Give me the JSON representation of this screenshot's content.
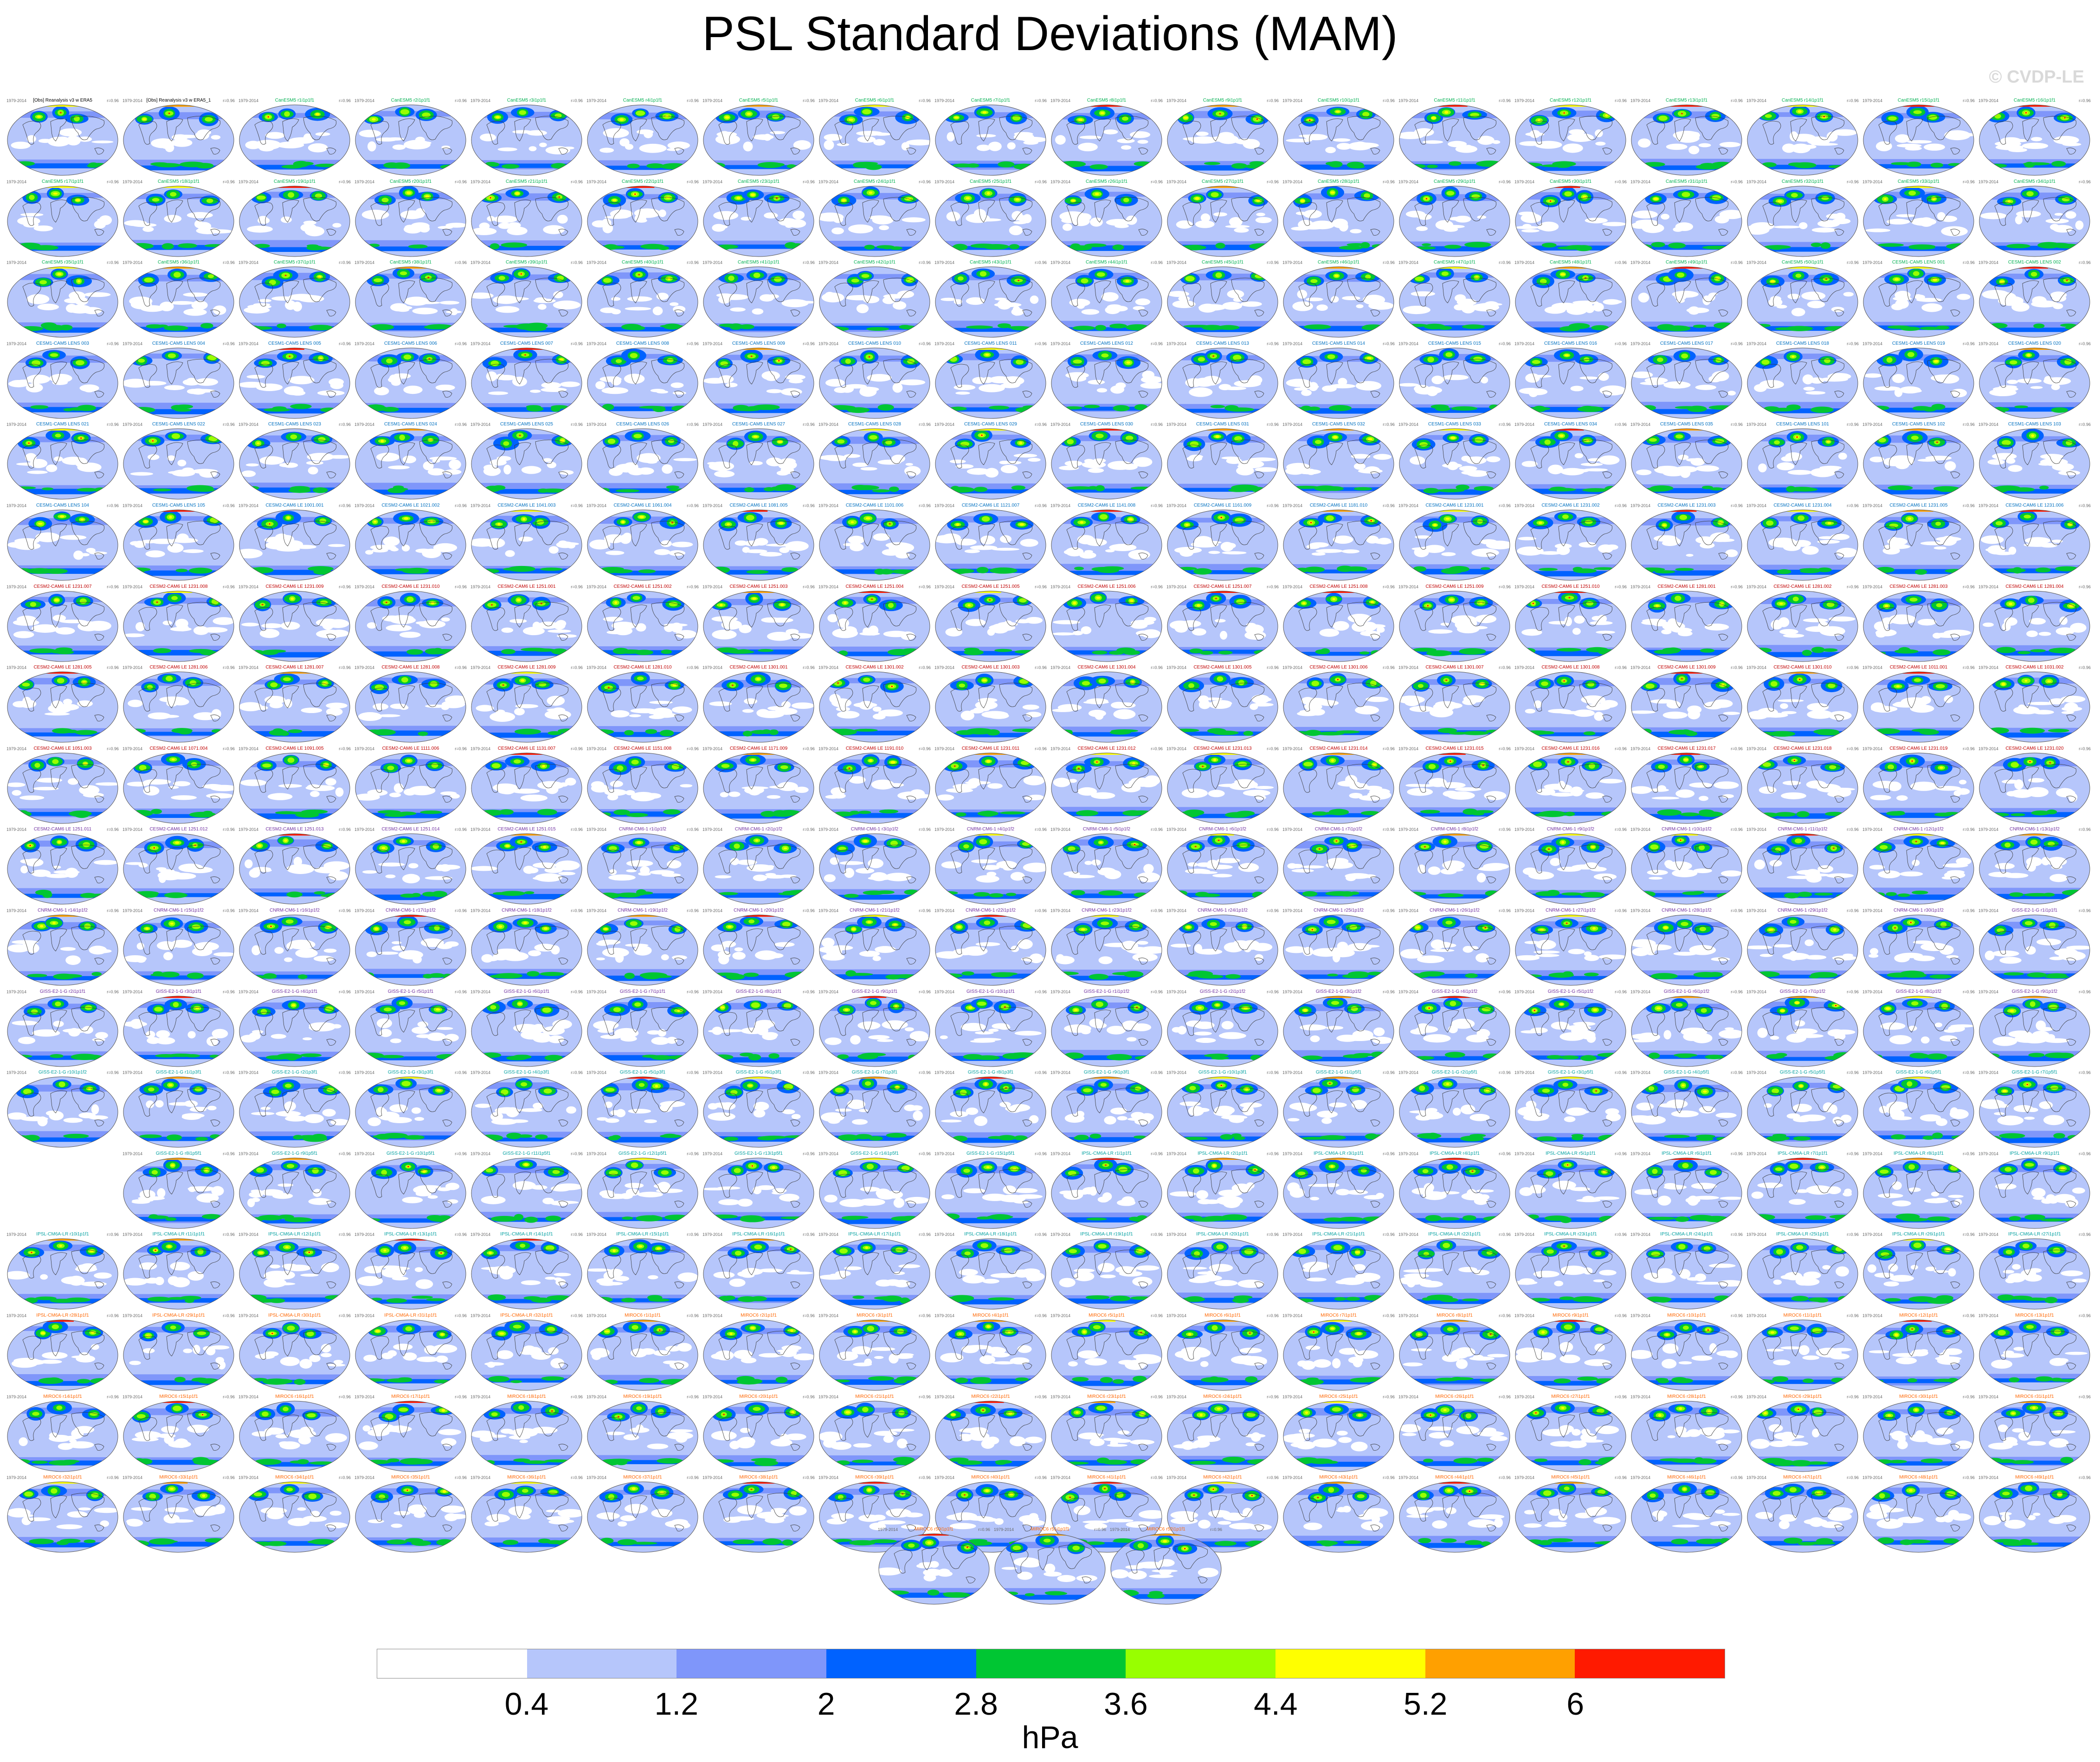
{
  "title": "PSL Standard Deviations (MAM)",
  "watermark": "© CVDP-LE",
  "legend": {
    "units": "hPa",
    "ticks": [
      "0.4",
      "1.2",
      "2",
      "2.8",
      "3.6",
      "4.4",
      "5.2",
      "6"
    ],
    "colors": [
      "#ffffff",
      "#b6c6fb",
      "#7f96fa",
      "#0062ff",
      "#00c633",
      "#98ff00",
      "#ffff00",
      "#ffa000",
      "#ff1a00"
    ]
  },
  "panel": {
    "left_label": "1979-2014",
    "right_label": "r=0.96"
  },
  "panel_rows": [
    {
      "count": 18,
      "labels": [
        "[Obs] Reanalysis v3 w ERA5",
        "[Obs] Reanalysis v3 w ERA5_1",
        "CanESM5 r1i1p1f1",
        "CanESM5 r2i1p1f1",
        "CanESM5 r3i1p1f1",
        "CanESM5 r4i1p1f1",
        "CanESM5 r5i1p1f1",
        "CanESM5 r6i1p1f1",
        "CanESM5 r7i1p1f1",
        "CanESM5 r8i1p1f1",
        "CanESM5 r9i1p1f1",
        "CanESM5 r10i1p1f1",
        "CanESM5 r11i1p1f1",
        "CanESM5 r12i1p1f1",
        "CanESM5 r13i1p1f1",
        "CanESM5 r14i1p1f1",
        "CanESM5 r15i1p1f1",
        "CanESM5 r16i1p1f1"
      ]
    },
    {
      "count": 18,
      "labels": [
        "CanESM5 r17i1p1f1",
        "CanESM5 r18i1p1f1",
        "CanESM5 r19i1p1f1",
        "CanESM5 r20i1p1f1",
        "CanESM5 r21i1p1f1",
        "CanESM5 r22i1p1f1",
        "CanESM5 r23i1p1f1",
        "CanESM5 r24i1p1f1",
        "CanESM5 r25i1p1f1",
        "CanESM5 r26i1p1f1",
        "CanESM5 r27i1p1f1",
        "CanESM5 r28i1p1f1",
        "CanESM5 r29i1p1f1",
        "CanESM5 r30i1p1f1",
        "CanESM5 r31i1p1f1",
        "CanESM5 r32i1p1f1",
        "CanESM5 r33i1p1f1",
        "CanESM5 r34i1p1f1"
      ]
    },
    {
      "count": 18,
      "labels": [
        "CanESM5 r35i1p1f1",
        "CanESM5 r36i1p1f1",
        "CanESM5 r37i1p1f1",
        "CanESM5 r38i1p1f1",
        "CanESM5 r39i1p1f1",
        "CanESM5 r40i1p1f1",
        "CanESM5 r41i1p1f1",
        "CanESM5 r42i1p1f1",
        "CanESM5 r43i1p1f1",
        "CanESM5 r44i1p1f1",
        "CanESM5 r45i1p1f1",
        "CanESM5 r46i1p1f1",
        "CanESM5 r47i1p1f1",
        "CanESM5 r48i1p1f1",
        "CanESM5 r49i1p1f1",
        "CanESM5 r50i1p1f1",
        "CESM1-CAM5 LENS 001",
        "CESM1-CAM5 LENS 002"
      ]
    },
    {
      "count": 18,
      "labels": [
        "CESM1-CAM5 LENS 003",
        "CESM1-CAM5 LENS 004",
        "CESM1-CAM5 LENS 005",
        "CESM1-CAM5 LENS 006",
        "CESM1-CAM5 LENS 007",
        "CESM1-CAM5 LENS 008",
        "CESM1-CAM5 LENS 009",
        "CESM1-CAM5 LENS 010",
        "CESM1-CAM5 LENS 011",
        "CESM1-CAM5 LENS 012",
        "CESM1-CAM5 LENS 013",
        "CESM1-CAM5 LENS 014",
        "CESM1-CAM5 LENS 015",
        "CESM1-CAM5 LENS 016",
        "CESM1-CAM5 LENS 017",
        "CESM1-CAM5 LENS 018",
        "CESM1-CAM5 LENS 019",
        "CESM1-CAM5 LENS 020"
      ]
    },
    {
      "count": 18,
      "labels": [
        "CESM1-CAM5 LENS 021",
        "CESM1-CAM5 LENS 022",
        "CESM1-CAM5 LENS 023",
        "CESM1-CAM5 LENS 024",
        "CESM1-CAM5 LENS 025",
        "CESM1-CAM5 LENS 026",
        "CESM1-CAM5 LENS 027",
        "CESM1-CAM5 LENS 028",
        "CESM1-CAM5 LENS 029",
        "CESM1-CAM5 LENS 030",
        "CESM1-CAM5 LENS 031",
        "CESM1-CAM5 LENS 032",
        "CESM1-CAM5 LENS 033",
        "CESM1-CAM5 LENS 034",
        "CESM1-CAM5 LENS 035",
        "CESM1-CAM5 LENS 101",
        "CESM1-CAM5 LENS 102",
        "CESM1-CAM5 LENS 103"
      ]
    },
    {
      "count": 18,
      "labels": [
        "CESM1-CAM5 LENS 104",
        "CESM1-CAM5 LENS 105",
        "CESM2-CAM6 LE 1001.001",
        "CESM2-CAM6 LE 1021.002",
        "CESM2-CAM6 LE 1041.003",
        "CESM2-CAM6 LE 1061.004",
        "CESM2-CAM6 LE 1081.005",
        "CESM2-CAM6 LE 1101.006",
        "CESM2-CAM6 LE 1121.007",
        "CESM2-CAM6 LE 1141.008",
        "CESM2-CAM6 LE 1161.009",
        "CESM2-CAM6 LE 1181.010",
        "CESM2-CAM6 LE 1231.001",
        "CESM2-CAM6 LE 1231.002",
        "CESM2-CAM6 LE 1231.003",
        "CESM2-CAM6 LE 1231.004",
        "CESM2-CAM6 LE 1231.005",
        "CESM2-CAM6 LE 1231.006"
      ]
    },
    {
      "count": 18,
      "labels": [
        "CESM2-CAM6 LE 1231.007",
        "CESM2-CAM6 LE 1231.008",
        "CESM2-CAM6 LE 1231.009",
        "CESM2-CAM6 LE 1231.010",
        "CESM2-CAM6 LE 1251.001",
        "CESM2-CAM6 LE 1251.002",
        "CESM2-CAM6 LE 1251.003",
        "CESM2-CAM6 LE 1251.004",
        "CESM2-CAM6 LE 1251.005",
        "CESM2-CAM6 LE 1251.006",
        "CESM2-CAM6 LE 1251.007",
        "CESM2-CAM6 LE 1251.008",
        "CESM2-CAM6 LE 1251.009",
        "CESM2-CAM6 LE 1251.010",
        "CESM2-CAM6 LE 1281.001",
        "CESM2-CAM6 LE 1281.002",
        "CESM2-CAM6 LE 1281.003",
        "CESM2-CAM6 LE 1281.004"
      ]
    },
    {
      "count": 18,
      "labels": [
        "CESM2-CAM6 LE 1281.005",
        "CESM2-CAM6 LE 1281.006",
        "CESM2-CAM6 LE 1281.007",
        "CESM2-CAM6 LE 1281.008",
        "CESM2-CAM6 LE 1281.009",
        "CESM2-CAM6 LE 1281.010",
        "CESM2-CAM6 LE 1301.001",
        "CESM2-CAM6 LE 1301.002",
        "CESM2-CAM6 LE 1301.003",
        "CESM2-CAM6 LE 1301.004",
        "CESM2-CAM6 LE 1301.005",
        "CESM2-CAM6 LE 1301.006",
        "CESM2-CAM6 LE 1301.007",
        "CESM2-CAM6 LE 1301.008",
        "CESM2-CAM6 LE 1301.009",
        "CESM2-CAM6 LE 1301.010",
        "CESM2-CAM6 LE 1011.001",
        "CESM2-CAM6 LE 1031.002"
      ]
    },
    {
      "count": 18,
      "labels": [
        "CESM2-CAM6 LE 1051.003",
        "CESM2-CAM6 LE 1071.004",
        "CESM2-CAM6 LE 1091.005",
        "CESM2-CAM6 LE 1111.006",
        "CESM2-CAM6 LE 1131.007",
        "CESM2-CAM6 LE 1151.008",
        "CESM2-CAM6 LE 1171.009",
        "CESM2-CAM6 LE 1191.010",
        "CESM2-CAM6 LE 1231.011",
        "CESM2-CAM6 LE 1231.012",
        "CESM2-CAM6 LE 1231.013",
        "CESM2-CAM6 LE 1231.014",
        "CESM2-CAM6 LE 1231.015",
        "CESM2-CAM6 LE 1231.016",
        "CESM2-CAM6 LE 1231.017",
        "CESM2-CAM6 LE 1231.018",
        "CESM2-CAM6 LE 1231.019",
        "CESM2-CAM6 LE 1231.020"
      ]
    },
    {
      "count": 18,
      "labels": [
        "CESM2-CAM6 LE 1251.011",
        "CESM2-CAM6 LE 1251.012",
        "CESM2-CAM6 LE 1251.013",
        "CESM2-CAM6 LE 1251.014",
        "CESM2-CAM6 LE 1251.015",
        "CNRM-CM6-1 r1i1p1f2",
        "CNRM-CM6-1 r2i1p1f2",
        "CNRM-CM6-1 r3i1p1f2",
        "CNRM-CM6-1 r4i1p1f2",
        "CNRM-CM6-1 r5i1p1f2",
        "CNRM-CM6-1 r6i1p1f2",
        "CNRM-CM6-1 r7i1p1f2",
        "CNRM-CM6-1 r8i1p1f2",
        "CNRM-CM6-1 r9i1p1f2",
        "CNRM-CM6-1 r10i1p1f2",
        "CNRM-CM6-1 r11i1p1f2",
        "CNRM-CM6-1 r12i1p1f2",
        "CNRM-CM6-1 r13i1p1f2"
      ]
    },
    {
      "count": 18,
      "labels": [
        "CNRM-CM6-1 r14i1p1f2",
        "CNRM-CM6-1 r15i1p1f2",
        "CNRM-CM6-1 r16i1p1f2",
        "CNRM-CM6-1 r17i1p1f2",
        "CNRM-CM6-1 r18i1p1f2",
        "CNRM-CM6-1 r19i1p1f2",
        "CNRM-CM6-1 r20i1p1f2",
        "CNRM-CM6-1 r21i1p1f2",
        "CNRM-CM6-1 r22i1p1f2",
        "CNRM-CM6-1 r23i1p1f2",
        "CNRM-CM6-1 r24i1p1f2",
        "CNRM-CM6-1 r25i1p1f2",
        "CNRM-CM6-1 r26i1p1f2",
        "CNRM-CM6-1 r27i1p1f2",
        "CNRM-CM6-1 r28i1p1f2",
        "CNRM-CM6-1 r29i1p1f2",
        "CNRM-CM6-1 r30i1p1f2",
        "GISS-E2-1-G r1i1p1f1"
      ]
    },
    {
      "count": 18,
      "labels": [
        "GISS-E2-1-G r2i1p1f1",
        "GISS-E2-1-G r3i1p1f1",
        "GISS-E2-1-G r4i1p1f1",
        "GISS-E2-1-G r5i1p1f1",
        "GISS-E2-1-G r6i1p1f1",
        "GISS-E2-1-G r7i1p1f1",
        "GISS-E2-1-G r8i1p1f1",
        "GISS-E2-1-G r9i1p1f1",
        "GISS-E2-1-G r10i1p1f1",
        "GISS-E2-1-G r1i1p1f2",
        "GISS-E2-1-G r2i1p1f2",
        "GISS-E2-1-G r3i1p1f2",
        "GISS-E2-1-G r4i1p1f2",
        "GISS-E2-1-G r5i1p1f2",
        "GISS-E2-1-G r6i1p1f2",
        "GISS-E2-1-G r7i1p1f2",
        "GISS-E2-1-G r8i1p1f2",
        "GISS-E2-1-G r9i1p1f2"
      ]
    },
    {
      "count": 18,
      "labels": [
        "GISS-E2-1-G r10i1p1f2",
        "GISS-E2-1-G r1i1p3f1",
        "GISS-E2-1-G r2i1p3f1",
        "GISS-E2-1-G r3i1p3f1",
        "GISS-E2-1-G r4i1p3f1",
        "GISS-E2-1-G r5i1p3f1",
        "GISS-E2-1-G r6i1p3f1",
        "GISS-E2-1-G r7i1p3f1",
        "GISS-E2-1-G r8i1p3f1",
        "GISS-E2-1-G r9i1p3f1",
        "GISS-E2-1-G r10i1p3f1",
        "GISS-E2-1-G r1i1p5f1",
        "GISS-E2-1-G r2i1p5f1",
        "GISS-E2-1-G r3i1p5f1",
        "GISS-E2-1-G r4i1p5f1",
        "GISS-E2-1-G r5i1p5f1",
        "GISS-E2-1-G r6i1p5f1",
        "GISS-E2-1-G r7i1p5f1"
      ]
    },
    {
      "count": 17,
      "labels": [
        "GISS-E2-1-G r8i1p5f1",
        "GISS-E2-1-G r9i1p5f1",
        "GISS-E2-1-G r10i1p5f1",
        "GISS-E2-1-G r11i1p5f1",
        "GISS-E2-1-G r12i1p5f1",
        "GISS-E2-1-G r13i1p5f1",
        "GISS-E2-1-G r14i1p5f1",
        "GISS-E2-1-G r15i1p5f1",
        "IPSL-CM6A-LR r1i1p1f1",
        "IPSL-CM6A-LR r2i1p1f1",
        "IPSL-CM6A-LR r3i1p1f1",
        "IPSL-CM6A-LR r4i1p1f1",
        "IPSL-CM6A-LR r5i1p1f1",
        "IPSL-CM6A-LR r6i1p1f1",
        "IPSL-CM6A-LR r7i1p1f1",
        "IPSL-CM6A-LR r8i1p1f1",
        "IPSL-CM6A-LR r9i1p1f1"
      ]
    },
    {
      "count": 18,
      "labels": [
        "IPSL-CM6A-LR r10i1p1f1",
        "IPSL-CM6A-LR r11i1p1f1",
        "IPSL-CM6A-LR r12i1p1f1",
        "IPSL-CM6A-LR r13i1p1f1",
        "IPSL-CM6A-LR r14i1p1f1",
        "IPSL-CM6A-LR r15i1p1f1",
        "IPSL-CM6A-LR r16i1p1f1",
        "IPSL-CM6A-LR r17i1p1f1",
        "IPSL-CM6A-LR r18i1p1f1",
        "IPSL-CM6A-LR r19i1p1f1",
        "IPSL-CM6A-LR r20i1p1f1",
        "IPSL-CM6A-LR r21i1p1f1",
        "IPSL-CM6A-LR r22i1p1f1",
        "IPSL-CM6A-LR r23i1p1f1",
        "IPSL-CM6A-LR r24i1p1f1",
        "IPSL-CM6A-LR r25i1p1f1",
        "IPSL-CM6A-LR r26i1p1f1",
        "IPSL-CM6A-LR r27i1p1f1"
      ]
    },
    {
      "count": 18,
      "labels": [
        "IPSL-CM6A-LR r28i1p1f1",
        "IPSL-CM6A-LR r29i1p1f1",
        "IPSL-CM6A-LR r30i1p1f1",
        "IPSL-CM6A-LR r31i1p1f1",
        "IPSL-CM6A-LR r32i1p1f1",
        "MIROC6 r1i1p1f1",
        "MIROC6 r2i1p1f1",
        "MIROC6 r3i1p1f1",
        "MIROC6 r4i1p1f1",
        "MIROC6 r5i1p1f1",
        "MIROC6 r6i1p1f1",
        "MIROC6 r7i1p1f1",
        "MIROC6 r8i1p1f1",
        "MIROC6 r9i1p1f1",
        "MIROC6 r10i1p1f1",
        "MIROC6 r11i1p1f1",
        "MIROC6 r12i1p1f1",
        "MIROC6 r13i1p1f1"
      ]
    },
    {
      "count": 18,
      "labels": [
        "MIROC6 r14i1p1f1",
        "MIROC6 r15i1p1f1",
        "MIROC6 r16i1p1f1",
        "MIROC6 r17i1p1f1",
        "MIROC6 r18i1p1f1",
        "MIROC6 r19i1p1f1",
        "MIROC6 r20i1p1f1",
        "MIROC6 r21i1p1f1",
        "MIROC6 r22i1p1f1",
        "MIROC6 r23i1p1f1",
        "MIROC6 r24i1p1f1",
        "MIROC6 r25i1p1f1",
        "MIROC6 r26i1p1f1",
        "MIROC6 r27i1p1f1",
        "MIROC6 r28i1p1f1",
        "MIROC6 r29i1p1f1",
        "MIROC6 r30i1p1f1",
        "MIROC6 r31i1p1f1"
      ]
    },
    {
      "count": 18,
      "labels": [
        "MIROC6 r32i1p1f1",
        "MIROC6 r33i1p1f1",
        "MIROC6 r34i1p1f1",
        "MIROC6 r35i1p1f1",
        "MIROC6 r36i1p1f1",
        "MIROC6 r37i1p1f1",
        "MIROC6 r38i1p1f1",
        "MIROC6 r39i1p1f1",
        "MIROC6 r40i1p1f1",
        "MIROC6 r41i1p1f1",
        "MIROC6 r42i1p1f1",
        "MIROC6 r43i1p1f1",
        "MIROC6 r44i1p1f1",
        "MIROC6 r45i1p1f1",
        "MIROC6 r46i1p1f1",
        "MIROC6 r47i1p1f1",
        "MIROC6 r48i1p1f1",
        "MIROC6 r49i1p1f1"
      ]
    },
    {
      "count": 3,
      "labels": [
        "MIROC6 r50i1p1f1",
        "MIROC6 r51i1p1f1",
        "MIROC6 r52i1p1f1"
      ]
    }
  ]
}
